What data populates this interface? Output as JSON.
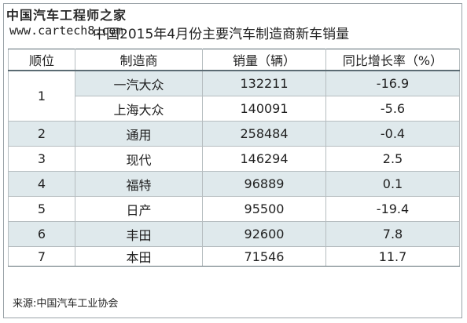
{
  "watermark": {
    "site_name_cn": "中国汽车工程师之家",
    "url": "www.cartech8.com"
  },
  "title": "中国2015年4月份主要汽车制造商新车销量",
  "table": {
    "headers": [
      "顺位",
      "制造商",
      "销量（辆）",
      "同比增长率（%）"
    ],
    "rows": [
      {
        "rank": "1",
        "maker": "一汽大众",
        "sales": "132211",
        "growth": "-16.9"
      },
      {
        "rank": "",
        "maker": "上海大众",
        "sales": "140091",
        "growth": "-5.6"
      },
      {
        "rank": "2",
        "maker": "通用",
        "sales": "258484",
        "growth": "-0.4"
      },
      {
        "rank": "3",
        "maker": "现代",
        "sales": "146294",
        "growth": "2.5"
      },
      {
        "rank": "4",
        "maker": "福特",
        "sales": "96889",
        "growth": "0.1"
      },
      {
        "rank": "5",
        "maker": "日产",
        "sales": "95500",
        "growth": "-19.4"
      },
      {
        "rank": "6",
        "maker": "丰田",
        "sales": "92600",
        "growth": "7.8"
      },
      {
        "rank": "7",
        "maker": "本田",
        "sales": "71546",
        "growth": "11.7"
      }
    ]
  },
  "source": "来源:中国汽车工业协会",
  "colors": {
    "shade": "#dfe9ec",
    "border": "#5b6b73"
  }
}
